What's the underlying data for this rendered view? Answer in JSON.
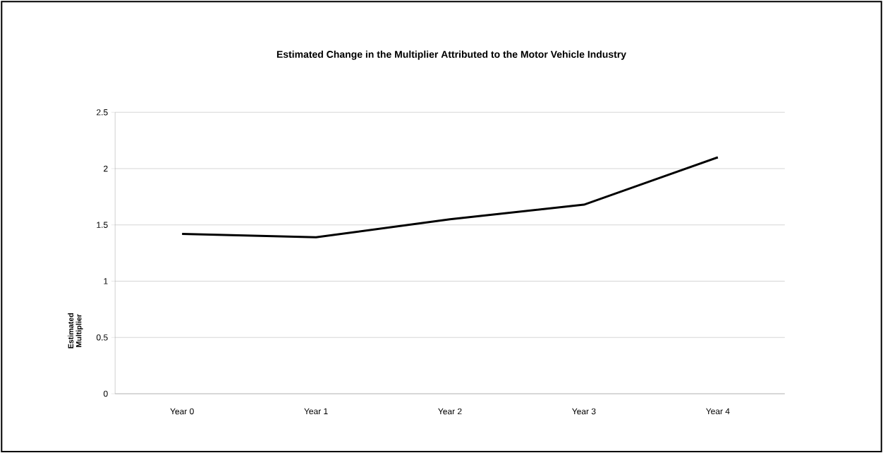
{
  "chart_data": {
    "type": "line",
    "title": "Estimated Change in the Multiplier Attributed to the Motor Vehicle Industry",
    "ylabel": "Estimated Multiplier",
    "categories": [
      "Year 0",
      "Year 1",
      "Year 2",
      "Year 3",
      "Year 4"
    ],
    "series": [
      {
        "color": "#000000",
        "values": [
          1.42,
          1.39,
          1.55,
          1.68,
          2.1
        ]
      }
    ],
    "ylim": [
      0,
      2.5
    ],
    "yticks": [
      0,
      0.5,
      1,
      1.5,
      2,
      2.5
    ],
    "grid": "y",
    "marker": "none",
    "line_style": "solid"
  }
}
